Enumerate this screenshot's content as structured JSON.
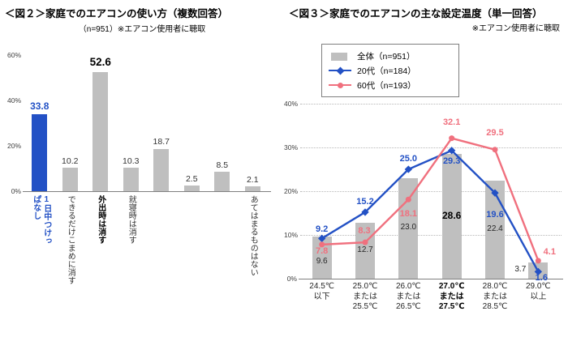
{
  "colors": {
    "accent_blue": "#2351C5",
    "accent_red": "#F0707E",
    "neutral_gray": "#BFBFBF"
  },
  "chart_data": [
    {
      "type": "bar",
      "title": "＜図２＞家庭でのエアコンの使い方（複数回答）",
      "subtitle": "（n=951）※エアコン使用者に聴取",
      "categories": [
        "1日中つけっぱなし",
        "できるだけこまめに消す",
        "外出時は消す",
        "就寝時は消す",
        "",
        "",
        "",
        "あてはまるものはない"
      ],
      "values": [
        33.8,
        10.2,
        52.6,
        10.3,
        18.7,
        2.5,
        8.5,
        2.1
      ],
      "highlight_index": 0,
      "big_label_index": 2,
      "bar_color": "#BFBFBF",
      "highlight_color": "#2351C5",
      "ylim": [
        0,
        60
      ],
      "yticks": [
        {
          "v": 0,
          "label": "0%"
        },
        {
          "v": 20,
          "label": "20%"
        },
        {
          "v": 40,
          "label": "40%"
        },
        {
          "v": 60,
          "label": "60%"
        }
      ],
      "grid": "off",
      "legend": "none"
    },
    {
      "type": "combo-bar-line",
      "title": "＜図３＞家庭でのエアコンの主な設定温度（単一回答）",
      "subtitle": "※エアコン使用者に聴取",
      "categories": [
        [
          "24.5℃",
          "以下"
        ],
        [
          "25.0℃",
          "または",
          "25.5℃"
        ],
        [
          "26.0℃",
          "または",
          "26.5℃"
        ],
        [
          "27.0℃",
          "または",
          "27.5℃"
        ],
        [
          "28.0℃",
          "または",
          "28.5℃"
        ],
        [
          "29.0℃",
          "以上"
        ]
      ],
      "bold_category_index": 3,
      "series": [
        {
          "name": "全体（n=951）",
          "kind": "bar",
          "color": "#BFBFBF",
          "values": [
            9.6,
            12.7,
            23.0,
            28.6,
            22.4,
            3.7
          ],
          "bold_value_index": 3
        },
        {
          "name": "20代（n=184）",
          "kind": "line",
          "marker": "diamond",
          "color": "#2351C5",
          "values": [
            9.2,
            15.2,
            25.0,
            29.3,
            19.6,
            1.6
          ]
        },
        {
          "name": "60代（n=193）",
          "kind": "line",
          "marker": "circle",
          "color": "#F0707E",
          "values": [
            7.8,
            8.3,
            18.1,
            32.1,
            29.5,
            4.1
          ]
        }
      ],
      "ylim": [
        0,
        40
      ],
      "yticks": [
        {
          "v": 0,
          "label": "0%"
        },
        {
          "v": 10,
          "label": "10%"
        },
        {
          "v": 20,
          "label": "20%"
        },
        {
          "v": 30,
          "label": "30%"
        },
        {
          "v": 40,
          "label": "40%"
        }
      ],
      "grid": "horizontal-dotted",
      "legend_position": "top-left-in-plot"
    }
  ]
}
